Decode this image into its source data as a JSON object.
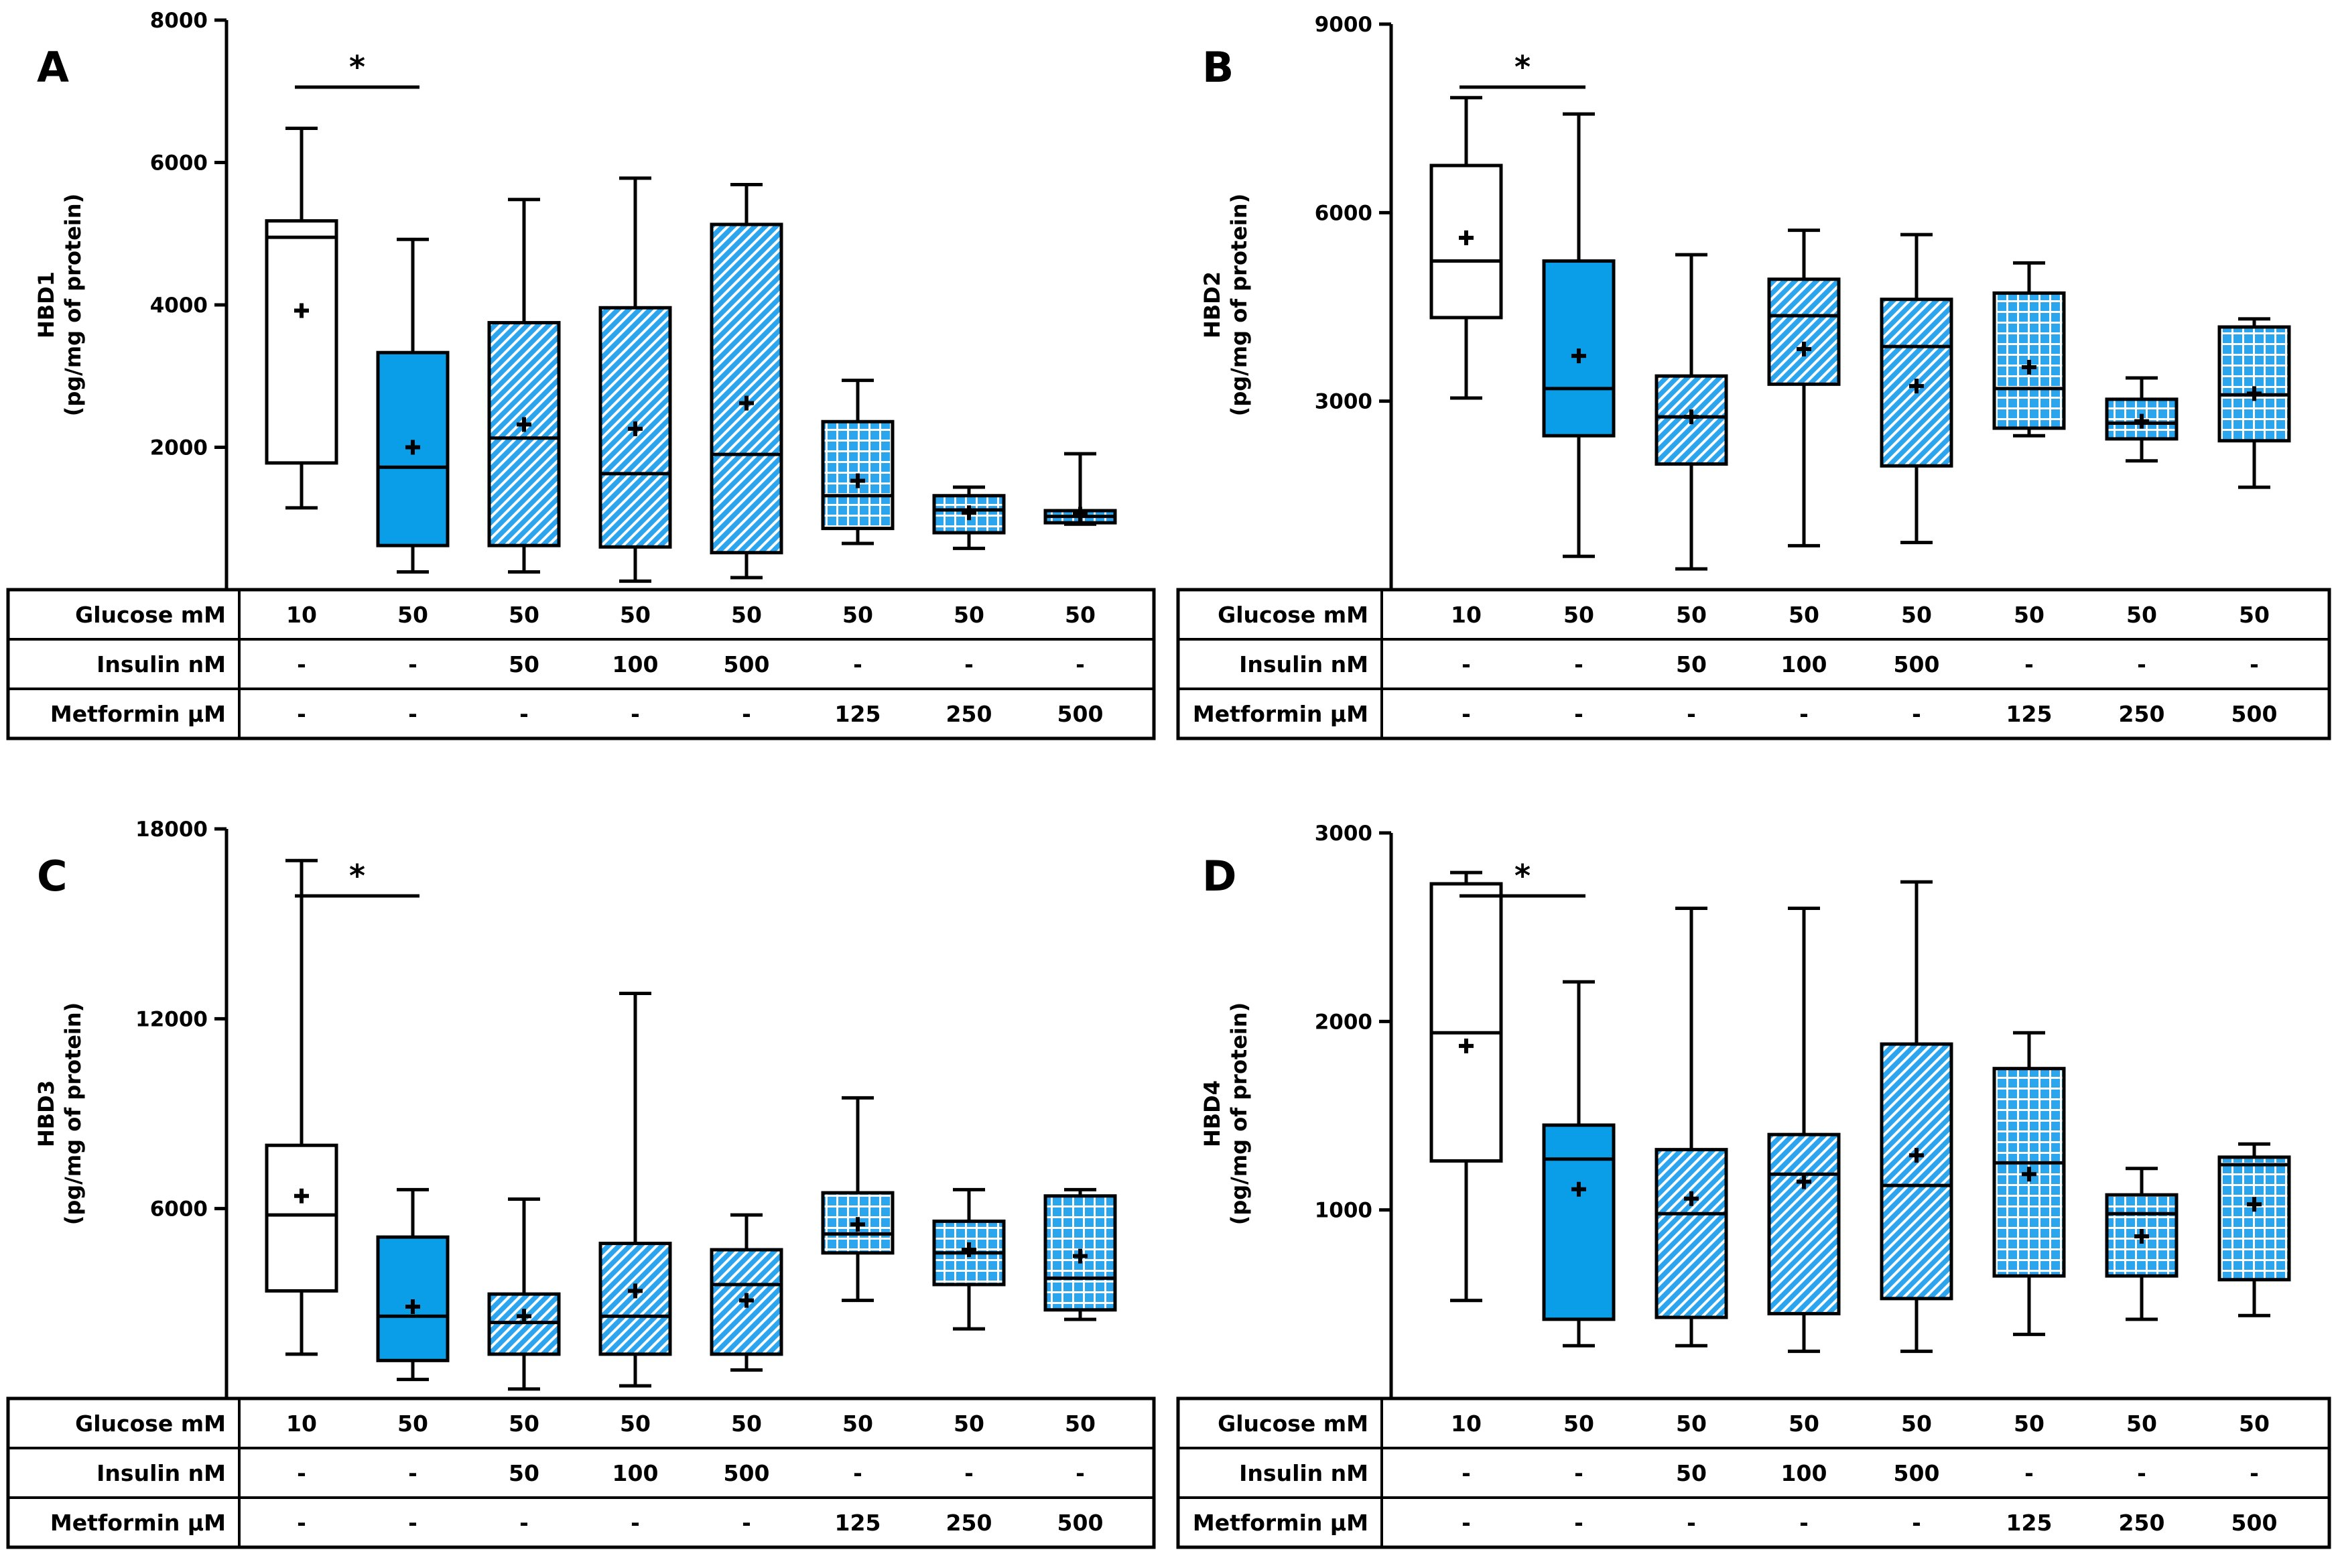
{
  "colors": {
    "blue": "#0a9ee8",
    "hatch_blue": "#2ba6ee",
    "line": "#000000",
    "white": "#ffffff"
  },
  "table": {
    "rows": [
      {
        "label": "Glucose mM",
        "values": [
          "10",
          "50",
          "50",
          "50",
          "50",
          "50",
          "50",
          "50"
        ]
      },
      {
        "label": "Insulin nM",
        "values": [
          "-",
          "-",
          "50",
          "100",
          "500",
          "-",
          "-",
          "-"
        ]
      },
      {
        "label": "Metformin μM",
        "values": [
          "-",
          "-",
          "-",
          "-",
          "-",
          "125",
          "250",
          "500"
        ]
      }
    ]
  },
  "group_styles": [
    "open",
    "solid",
    "hatch",
    "hatch",
    "hatch",
    "grid",
    "grid",
    "grid"
  ],
  "chart_data": [
    {
      "type": "box",
      "panel": "A",
      "ylabel_line1": "HBD1",
      "ylabel_line2": "(pg/mg of protein)",
      "ylim": [
        0,
        8000
      ],
      "yticks": [
        2000,
        4000,
        6000,
        8000
      ],
      "ytick_labels": [
        "2000",
        "4000",
        "6000",
        "8000"
      ],
      "significance": {
        "from_group": 1,
        "to_group": 2,
        "label": "*"
      },
      "boxes": [
        {
          "min": 1150,
          "q1": 1780,
          "median": 4950,
          "q3": 5180,
          "max": 6480,
          "mean": 3920
        },
        {
          "min": 250,
          "q1": 620,
          "median": 1720,
          "q3": 3330,
          "max": 4920,
          "mean": 2000
        },
        {
          "min": 250,
          "q1": 620,
          "median": 2130,
          "q3": 3750,
          "max": 5480,
          "mean": 2320
        },
        {
          "min": 120,
          "q1": 600,
          "median": 1630,
          "q3": 3960,
          "max": 5780,
          "mean": 2260
        },
        {
          "min": 170,
          "q1": 520,
          "median": 1900,
          "q3": 5130,
          "max": 5690,
          "mean": 2620
        },
        {
          "min": 650,
          "q1": 860,
          "median": 1320,
          "q3": 2360,
          "max": 2940,
          "mean": 1530
        },
        {
          "min": 580,
          "q1": 800,
          "median": 1120,
          "q3": 1320,
          "max": 1440,
          "mean": 1080
        },
        {
          "min": 920,
          "q1": 940,
          "median": 1030,
          "q3": 1110,
          "max": 1910,
          "mean": 1060
        }
      ]
    },
    {
      "type": "box",
      "panel": "B",
      "ylabel_line1": "HBD2",
      "ylabel_line2": "(pg/mg of protein)",
      "ylim": [
        0,
        9000
      ],
      "yticks": [
        3000,
        6000,
        9000
      ],
      "ytick_labels": [
        "3000",
        "6000",
        "9000"
      ],
      "significance": {
        "from_group": 1,
        "to_group": 2,
        "label": "*"
      },
      "boxes": [
        {
          "min": 3050,
          "q1": 4330,
          "median": 5230,
          "q3": 6750,
          "max": 7830,
          "mean": 5600
        },
        {
          "min": 530,
          "q1": 2450,
          "median": 3200,
          "q3": 5230,
          "max": 7570,
          "mean": 3720
        },
        {
          "min": 330,
          "q1": 2000,
          "median": 2750,
          "q3": 3400,
          "max": 5330,
          "mean": 2750
        },
        {
          "min": 700,
          "q1": 3270,
          "median": 4360,
          "q3": 4940,
          "max": 5720,
          "mean": 3830
        },
        {
          "min": 750,
          "q1": 1970,
          "median": 3870,
          "q3": 4620,
          "max": 5650,
          "mean": 3240
        },
        {
          "min": 2450,
          "q1": 2570,
          "median": 3200,
          "q3": 4720,
          "max": 5200,
          "mean": 3540
        },
        {
          "min": 2050,
          "q1": 2400,
          "median": 2650,
          "q3": 3030,
          "max": 3370,
          "mean": 2680
        },
        {
          "min": 1630,
          "q1": 2370,
          "median": 3100,
          "q3": 4180,
          "max": 4310,
          "mean": 3120
        }
      ]
    },
    {
      "type": "box",
      "panel": "C",
      "ylabel_line1": "HBD3",
      "ylabel_line2": "(pg/mg of protein)",
      "ylim": [
        0,
        18000
      ],
      "yticks": [
        6000,
        12000,
        18000
      ],
      "ytick_labels": [
        "6000",
        "12000",
        "18000"
      ],
      "significance": {
        "from_group": 1,
        "to_group": 2,
        "label": "*"
      },
      "boxes": [
        {
          "min": 1400,
          "q1": 3400,
          "median": 5800,
          "q3": 8000,
          "max": 17000,
          "mean": 6400
        },
        {
          "min": 600,
          "q1": 1200,
          "median": 2600,
          "q3": 5100,
          "max": 6600,
          "mean": 2900
        },
        {
          "min": 300,
          "q1": 1400,
          "median": 2400,
          "q3": 3300,
          "max": 6300,
          "mean": 2600
        },
        {
          "min": 400,
          "q1": 1400,
          "median": 2600,
          "q3": 4900,
          "max": 12800,
          "mean": 3400
        },
        {
          "min": 900,
          "q1": 1400,
          "median": 3600,
          "q3": 4700,
          "max": 5800,
          "mean": 3100
        },
        {
          "min": 3100,
          "q1": 4600,
          "median": 5200,
          "q3": 6500,
          "max": 9500,
          "mean": 5500
        },
        {
          "min": 2200,
          "q1": 3600,
          "median": 4600,
          "q3": 5600,
          "max": 6600,
          "mean": 4700
        },
        {
          "min": 2500,
          "q1": 2800,
          "median": 3800,
          "q3": 6400,
          "max": 6600,
          "mean": 4500
        }
      ]
    },
    {
      "type": "box",
      "panel": "D",
      "ylabel_line1": "HBD4",
      "ylabel_line2": "(pg/mg of protein)",
      "ylim": [
        0,
        3000
      ],
      "yticks": [
        1000,
        2000,
        3000
      ],
      "ytick_labels": [
        "1000",
        "2000",
        "3000"
      ],
      "significance": {
        "from_group": 1,
        "to_group": 2,
        "label": "*"
      },
      "boxes": [
        {
          "min": 520,
          "q1": 1260,
          "median": 1940,
          "q3": 2730,
          "max": 2790,
          "mean": 1870
        },
        {
          "min": 280,
          "q1": 420,
          "median": 1270,
          "q3": 1450,
          "max": 2210,
          "mean": 1110
        },
        {
          "min": 280,
          "q1": 430,
          "median": 980,
          "q3": 1320,
          "max": 2600,
          "mean": 1060
        },
        {
          "min": 250,
          "q1": 450,
          "median": 1190,
          "q3": 1400,
          "max": 2600,
          "mean": 1150
        },
        {
          "min": 250,
          "q1": 530,
          "median": 1130,
          "q3": 1880,
          "max": 2740,
          "mean": 1290
        },
        {
          "min": 340,
          "q1": 650,
          "median": 1250,
          "q3": 1750,
          "max": 1940,
          "mean": 1190
        },
        {
          "min": 420,
          "q1": 650,
          "median": 980,
          "q3": 1080,
          "max": 1220,
          "mean": 860
        },
        {
          "min": 440,
          "q1": 630,
          "median": 1240,
          "q3": 1280,
          "max": 1350,
          "mean": 1030
        }
      ]
    }
  ]
}
